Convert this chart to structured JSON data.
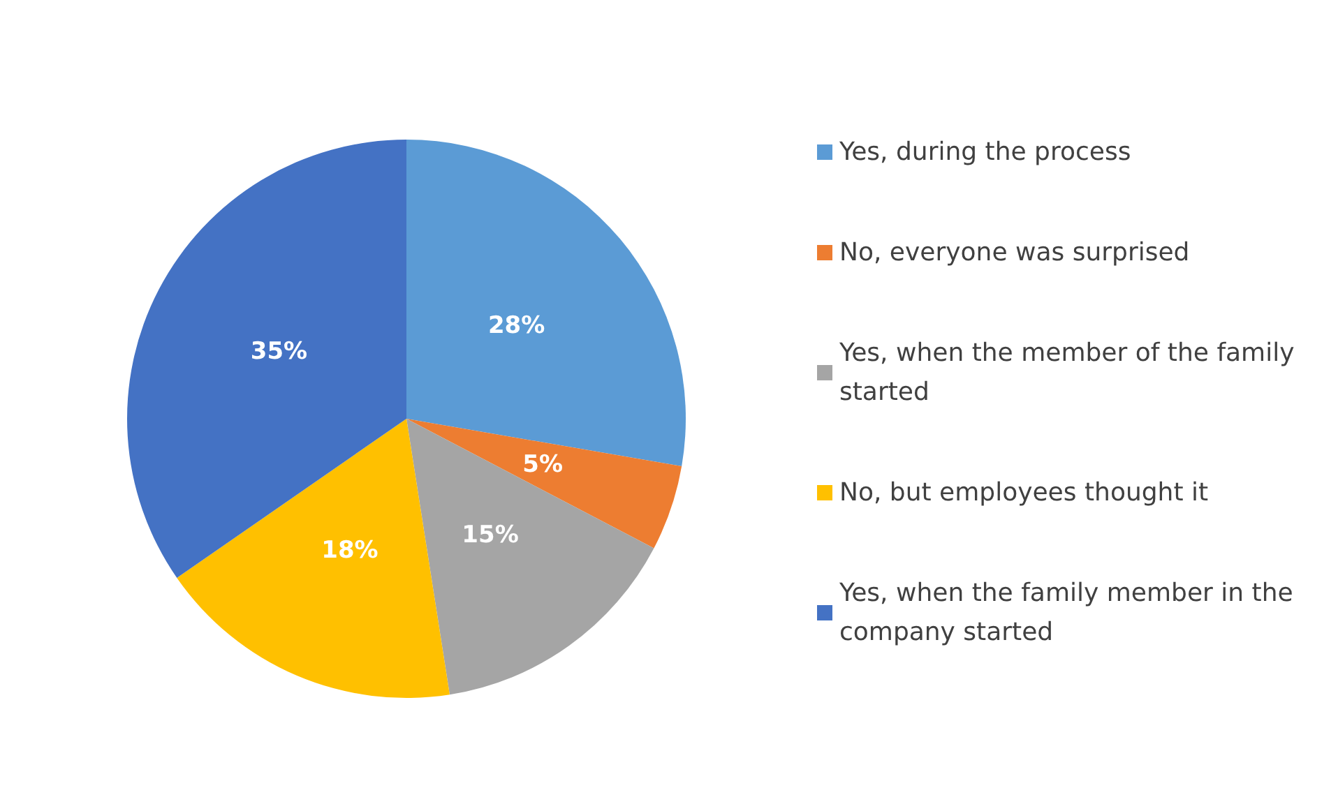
{
  "chart_data": {
    "type": "pie",
    "categories": [
      "Yes, during the process",
      "No, everyone was surprised",
      "Yes, when the member of the family started",
      "No, but employees thought it",
      "Yes, when the family member in the company started"
    ],
    "values": [
      28,
      5,
      15,
      18,
      35
    ],
    "colors": [
      "#5b9bd5",
      "#ed7d31",
      "#a5a5a5",
      "#ffc000",
      "#4472c4"
    ],
    "value_labels": [
      "28%",
      "5%",
      "15%",
      "18%",
      "35%"
    ],
    "legend": "right"
  }
}
